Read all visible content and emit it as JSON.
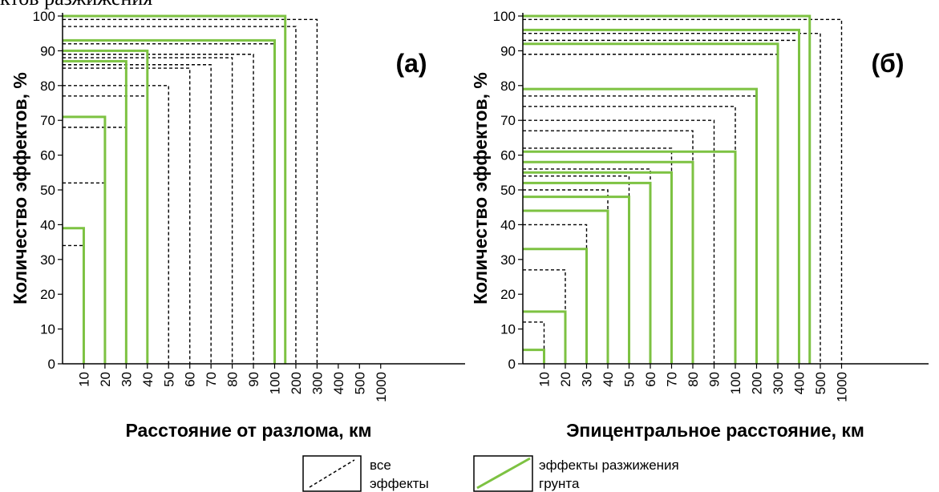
{
  "page": {
    "top_text": "ктов разжижения"
  },
  "colors": {
    "all_effects": "#000000",
    "liquefaction": "#7dc242"
  },
  "legend": {
    "all_line1": "все",
    "all_line2": "эффекты",
    "liq_line1": "эффекты разжижения",
    "liq_line2": "грунта"
  },
  "chart_data": [
    {
      "type": "step-box",
      "panel_label": "(а)",
      "xlabel": "Расстояние от разлома, км",
      "ylabel": "Количество эффектов, %",
      "x_ticks": [
        "10",
        "20",
        "30",
        "40",
        "50",
        "60",
        "70",
        "80",
        "90",
        "100",
        "200",
        "300",
        "400",
        "500",
        "1000"
      ],
      "y_ticks": [
        "0",
        "10",
        "20",
        "30",
        "40",
        "50",
        "60",
        "70",
        "80",
        "90",
        "100"
      ],
      "ylim": [
        0,
        100
      ],
      "series": [
        {
          "name": "все эффекты",
          "style": "dashed",
          "points": [
            {
              "x": "10",
              "y": 34
            },
            {
              "x": "20",
              "y": 52
            },
            {
              "x": "30",
              "y": 68
            },
            {
              "x": "40",
              "y": 77
            },
            {
              "x": "50",
              "y": 80
            },
            {
              "x": "60",
              "y": 85
            },
            {
              "x": "70",
              "y": 86
            },
            {
              "x": "80",
              "y": 88
            },
            {
              "x": "90",
              "y": 89
            },
            {
              "x": "100",
              "y": 92
            },
            {
              "x": "200",
              "y": 97
            },
            {
              "x": "300",
              "y": 99
            }
          ]
        },
        {
          "name": "эффекты разжижения грунта",
          "style": "solid",
          "points": [
            {
              "x": "10",
              "y": 39
            },
            {
              "x": "20",
              "y": 71
            },
            {
              "x": "30",
              "y": 87
            },
            {
              "x": "40",
              "y": 90
            },
            {
              "x": "100",
              "y": 93
            },
            {
              "x": "150",
              "y": 100
            }
          ]
        }
      ]
    },
    {
      "type": "step-box",
      "panel_label": "(б)",
      "xlabel": "Эпицентральное расстояние, км",
      "ylabel": "Количество эффектов, %",
      "x_ticks": [
        "10",
        "20",
        "30",
        "40",
        "50",
        "60",
        "70",
        "80",
        "90",
        "100",
        "200",
        "300",
        "400",
        "500",
        "1000"
      ],
      "y_ticks": [
        "0",
        "10",
        "20",
        "30",
        "40",
        "50",
        "60",
        "70",
        "80",
        "90",
        "100"
      ],
      "ylim": [
        0,
        100
      ],
      "series": [
        {
          "name": "все эффекты",
          "style": "dashed",
          "points": [
            {
              "x": "10",
              "y": 12
            },
            {
              "x": "20",
              "y": 27
            },
            {
              "x": "30",
              "y": 40
            },
            {
              "x": "40",
              "y": 50
            },
            {
              "x": "50",
              "y": 54
            },
            {
              "x": "60",
              "y": 56
            },
            {
              "x": "70",
              "y": 62
            },
            {
              "x": "80",
              "y": 67
            },
            {
              "x": "90",
              "y": 70
            },
            {
              "x": "100",
              "y": 74
            },
            {
              "x": "200",
              "y": 77
            },
            {
              "x": "300",
              "y": 89
            },
            {
              "x": "400",
              "y": 93
            },
            {
              "x": "500",
              "y": 95
            },
            {
              "x": "1000",
              "y": 99
            }
          ]
        },
        {
          "name": "эффекты разжижения грунта",
          "style": "solid",
          "points": [
            {
              "x": "10",
              "y": 4
            },
            {
              "x": "20",
              "y": 15
            },
            {
              "x": "30",
              "y": 33
            },
            {
              "x": "40",
              "y": 44
            },
            {
              "x": "50",
              "y": 48
            },
            {
              "x": "60",
              "y": 52
            },
            {
              "x": "70",
              "y": 55
            },
            {
              "x": "80",
              "y": 58
            },
            {
              "x": "100",
              "y": 61
            },
            {
              "x": "200",
              "y": 79
            },
            {
              "x": "300",
              "y": 92
            },
            {
              "x": "400",
              "y": 96
            },
            {
              "x": "450",
              "y": 100
            }
          ]
        }
      ]
    }
  ]
}
